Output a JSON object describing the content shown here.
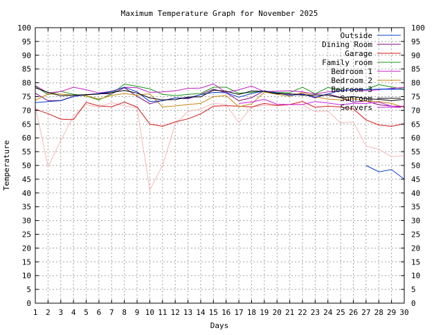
{
  "chart_data": {
    "type": "line",
    "title": "Maximum Temperature Graph for November 2025",
    "xlabel": "Days",
    "ylabel": "Temperature",
    "xlim": [
      1,
      30
    ],
    "ylim": [
      0,
      100
    ],
    "x_ticks": [
      1,
      2,
      3,
      4,
      5,
      6,
      7,
      8,
      9,
      10,
      11,
      12,
      13,
      14,
      15,
      16,
      17,
      18,
      19,
      20,
      21,
      22,
      23,
      24,
      25,
      26,
      27,
      28,
      29,
      30
    ],
    "y_ticks": [
      0,
      5,
      10,
      15,
      20,
      25,
      30,
      35,
      40,
      45,
      50,
      55,
      60,
      65,
      70,
      75,
      80,
      85,
      90,
      95,
      100
    ],
    "y_axis_right_labels": true,
    "grid": true,
    "legend_position": "top-right",
    "series": [
      {
        "name": "Outside",
        "color": "#0b3fd1",
        "points": [
          [
            27,
            50
          ],
          [
            28,
            47.7
          ],
          [
            29,
            48.5
          ],
          [
            30,
            45
          ]
        ]
      },
      {
        "name": "Dining Room",
        "color": "#7a0a7a",
        "points": [
          [
            1,
            76.2
          ],
          [
            2,
            73.5
          ],
          [
            3,
            73.6
          ],
          [
            4,
            75.1
          ],
          [
            5,
            75.6
          ],
          [
            6,
            76
          ],
          [
            7,
            76
          ],
          [
            8,
            78.2
          ],
          [
            9,
            75.1
          ],
          [
            10,
            72.4
          ],
          [
            11,
            73.6
          ],
          [
            12,
            74.5
          ],
          [
            13,
            74.2
          ],
          [
            14,
            75.7
          ],
          [
            15,
            77.7
          ],
          [
            16,
            76.4
          ],
          [
            17,
            73.5
          ],
          [
            18,
            74.6
          ],
          [
            19,
            77.1
          ],
          [
            20,
            76.3
          ],
          [
            21,
            75.8
          ],
          [
            22,
            76
          ],
          [
            23,
            74.5
          ],
          [
            24,
            76
          ],
          [
            25,
            74.7
          ],
          [
            26,
            73
          ],
          [
            27,
            73.4
          ],
          [
            28,
            72
          ],
          [
            29,
            71.5
          ],
          [
            30,
            71.2
          ]
        ]
      },
      {
        "name": "Garage",
        "color": "#d41616",
        "points": [
          [
            1,
            70.4
          ],
          [
            2,
            68.8
          ],
          [
            3,
            66.8
          ],
          [
            4,
            66.6
          ],
          [
            5,
            72.9
          ],
          [
            6,
            71.6
          ],
          [
            7,
            71.3
          ],
          [
            8,
            73
          ],
          [
            9,
            71.2
          ],
          [
            10,
            65
          ],
          [
            11,
            64.2
          ],
          [
            12,
            65.8
          ],
          [
            13,
            66.9
          ],
          [
            14,
            68.7
          ],
          [
            15,
            71.5
          ],
          [
            16,
            71.7
          ],
          [
            17,
            71.5
          ],
          [
            18,
            71.2
          ],
          [
            19,
            72.5
          ],
          [
            20,
            71.8
          ],
          [
            21,
            72.1
          ],
          [
            22,
            73.2
          ],
          [
            23,
            71.1
          ],
          [
            24,
            71.5
          ],
          [
            25,
            71.2
          ],
          [
            26,
            70.5
          ],
          [
            27,
            66.5
          ],
          [
            28,
            64.7
          ],
          [
            29,
            64.2
          ],
          [
            30,
            65.1
          ]
        ]
      },
      {
        "name": "Family room",
        "color": "#149414",
        "points": [
          [
            1,
            78.7
          ],
          [
            2,
            75.7
          ],
          [
            3,
            76.9
          ],
          [
            4,
            75.8
          ],
          [
            5,
            75.2
          ],
          [
            6,
            73.8
          ],
          [
            7,
            76
          ],
          [
            8,
            79.5
          ],
          [
            9,
            78.7
          ],
          [
            10,
            77.8
          ],
          [
            11,
            75.8
          ],
          [
            12,
            75.3
          ],
          [
            13,
            75.8
          ],
          [
            14,
            76.1
          ],
          [
            15,
            78.4
          ],
          [
            16,
            78.4
          ],
          [
            17,
            76.2
          ],
          [
            18,
            76.5
          ],
          [
            19,
            77
          ],
          [
            20,
            76.5
          ],
          [
            21,
            76.4
          ],
          [
            22,
            78.4
          ],
          [
            23,
            76
          ],
          [
            24,
            78.3
          ],
          [
            25,
            77.4
          ],
          [
            26,
            77.3
          ],
          [
            27,
            77.6
          ],
          [
            28,
            79.3
          ],
          [
            29,
            78.5
          ],
          [
            30,
            77.7
          ]
        ]
      },
      {
        "name": "Bedroom 1",
        "color": "#c21ec2",
        "points": [
          [
            1,
            79
          ],
          [
            2,
            76.3
          ],
          [
            3,
            76.8
          ],
          [
            4,
            78.4
          ],
          [
            5,
            77.5
          ],
          [
            6,
            76.3
          ],
          [
            7,
            76.9
          ],
          [
            8,
            78.4
          ],
          [
            9,
            78.2
          ],
          [
            10,
            76.5
          ],
          [
            11,
            76.7
          ],
          [
            12,
            77.1
          ],
          [
            13,
            78
          ],
          [
            14,
            78.1
          ],
          [
            15,
            79.6
          ],
          [
            16,
            76.5
          ],
          [
            17,
            77.5
          ],
          [
            18,
            78.8
          ],
          [
            19,
            76.8
          ],
          [
            20,
            76.9
          ],
          [
            21,
            77.1
          ],
          [
            22,
            76.7
          ],
          [
            23,
            75.9
          ],
          [
            24,
            76.7
          ],
          [
            25,
            77.1
          ],
          [
            26,
            77.5
          ],
          [
            27,
            77.1
          ],
          [
            28,
            77.5
          ],
          [
            29,
            78
          ],
          [
            30,
            78.3
          ]
        ]
      },
      {
        "name": "Bedroom 2",
        "color": "#c8860a",
        "points": [
          [
            1,
            73.7
          ],
          [
            2,
            75.9
          ],
          [
            3,
            75.9
          ],
          [
            4,
            75.5
          ],
          [
            5,
            75.3
          ],
          [
            6,
            74.1
          ],
          [
            7,
            75.4
          ],
          [
            8,
            76.1
          ],
          [
            9,
            75.5
          ],
          [
            10,
            76
          ],
          [
            11,
            71.2
          ],
          [
            12,
            71.6
          ],
          [
            13,
            72.1
          ],
          [
            14,
            72.5
          ],
          [
            15,
            75
          ],
          [
            16,
            75.3
          ],
          [
            17,
            71.3
          ],
          [
            18,
            72.3
          ],
          [
            19,
            76.6
          ],
          [
            20,
            75.8
          ],
          [
            21,
            75.1
          ],
          [
            22,
            76.5
          ],
          [
            23,
            74.9
          ],
          [
            24,
            74.1
          ],
          [
            25,
            73.8
          ],
          [
            26,
            74.2
          ],
          [
            27,
            73.3
          ],
          [
            28,
            73.2
          ],
          [
            29,
            72.5
          ],
          [
            30,
            71
          ]
        ]
      },
      {
        "name": "Bedroom 3",
        "color": "#0b3fd1",
        "points": [
          [
            1,
            72.8
          ],
          [
            2,
            73.2
          ],
          [
            3,
            73.5
          ],
          [
            4,
            75
          ],
          [
            5,
            75.7
          ],
          [
            6,
            76.1
          ],
          [
            7,
            76.8
          ],
          [
            8,
            78.4
          ],
          [
            9,
            76.7
          ],
          [
            10,
            73.2
          ],
          [
            11,
            73.5
          ],
          [
            12,
            74.5
          ],
          [
            13,
            74.5
          ],
          [
            14,
            75.7
          ],
          [
            15,
            76.5
          ],
          [
            16,
            76.4
          ],
          [
            17,
            74.8
          ],
          [
            18,
            76.1
          ],
          [
            19,
            77
          ],
          [
            20,
            76.3
          ],
          [
            21,
            75.4
          ],
          [
            22,
            75.8
          ],
          [
            23,
            74.8
          ],
          [
            24,
            75.9
          ],
          [
            25,
            77.2
          ],
          [
            26,
            77.6
          ],
          [
            27,
            77.5
          ],
          [
            28,
            77.7
          ],
          [
            29,
            77.8
          ],
          [
            30,
            77.6
          ]
        ]
      },
      {
        "name": "Sunroom",
        "color": "#000000",
        "points": [
          [
            1,
            78.2
          ],
          [
            2,
            76.5
          ],
          [
            3,
            75.3
          ],
          [
            4,
            75.5
          ],
          [
            5,
            75.7
          ],
          [
            6,
            75.9
          ],
          [
            7,
            76.5
          ],
          [
            8,
            77.2
          ],
          [
            9,
            76.3
          ],
          [
            10,
            74.5
          ],
          [
            11,
            73.8
          ],
          [
            12,
            73.9
          ],
          [
            13,
            74.8
          ],
          [
            14,
            74.9
          ],
          [
            15,
            77.3
          ],
          [
            16,
            76.9
          ],
          [
            17,
            75.8
          ],
          [
            18,
            77
          ],
          [
            19,
            76.9
          ],
          [
            20,
            76
          ],
          [
            21,
            76
          ],
          [
            22,
            75.5
          ],
          [
            23,
            75.6
          ],
          [
            24,
            75.5
          ],
          [
            25,
            74.6
          ],
          [
            26,
            75
          ],
          [
            27,
            74.2
          ],
          [
            28,
            74
          ],
          [
            29,
            73.5
          ],
          [
            30,
            74
          ]
        ]
      },
      {
        "name": "Servers",
        "color": "#c81ee0",
        "points": [
          [
            17,
            72.5
          ],
          [
            18,
            73
          ],
          [
            19,
            74
          ],
          [
            20,
            72.2
          ],
          [
            21,
            72.1
          ],
          [
            22,
            72.1
          ],
          [
            23,
            73.2
          ],
          [
            24,
            72.7
          ],
          [
            25,
            72
          ],
          [
            26,
            72.5
          ],
          [
            27,
            72.5
          ],
          [
            28,
            73
          ],
          [
            29,
            71.5
          ],
          [
            30,
            71.5
          ]
        ]
      },
      {
        "name": "",
        "color": "#f4b8b8",
        "points": [
          [
            1,
            71.5
          ],
          [
            2,
            49.5
          ],
          [
            3,
            59
          ],
          [
            4,
            68
          ],
          [
            5,
            72
          ],
          [
            6,
            71.2
          ],
          [
            7,
            72.8
          ],
          [
            8,
            71.6
          ],
          [
            9,
            70.9
          ],
          [
            10,
            41
          ],
          [
            11,
            50
          ],
          [
            12,
            65
          ],
          [
            13,
            69.6
          ],
          [
            14,
            70.5
          ],
          [
            15,
            72.5
          ],
          [
            16,
            72.1
          ],
          [
            17,
            65.5
          ],
          [
            18,
            71.2
          ],
          [
            19,
            71.8
          ],
          [
            20,
            71.6
          ],
          [
            21,
            72
          ],
          [
            22,
            72
          ],
          [
            23,
            69.5
          ],
          [
            24,
            69.8
          ],
          [
            25,
            65.4
          ],
          [
            26,
            65.8
          ],
          [
            27,
            57
          ],
          [
            28,
            55.8
          ],
          [
            29,
            53.2
          ],
          [
            30,
            53.5
          ]
        ]
      }
    ]
  }
}
